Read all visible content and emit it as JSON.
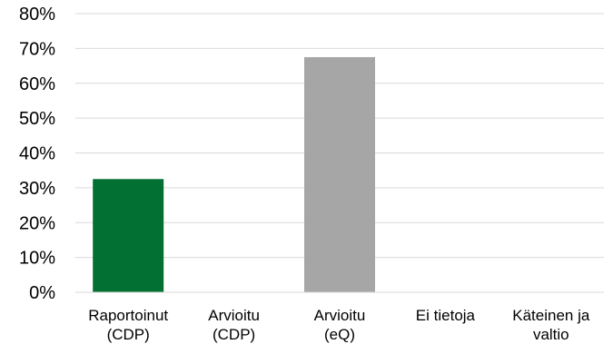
{
  "chart_data": {
    "type": "bar",
    "categories": [
      [
        "Raportoinut",
        "(CDP)"
      ],
      [
        "Arvioitu",
        "(CDP)"
      ],
      [
        "Arvioitu",
        "(eQ)"
      ],
      [
        "Ei tietoja"
      ],
      [
        "Käteinen ja",
        "valtio"
      ]
    ],
    "values": [
      32.5,
      0,
      67.5,
      0,
      0
    ],
    "bar_colors": [
      "#037033",
      "#037033",
      "#a6a6a6",
      "#a6a6a6",
      "#a6a6a6"
    ],
    "ylim": [
      0,
      80
    ],
    "yticks": [
      "0%",
      "10%",
      "20%",
      "30%",
      "40%",
      "50%",
      "60%",
      "70%",
      "80%"
    ],
    "grid": true,
    "legend": "none",
    "title": "",
    "xlabel": "",
    "ylabel": ""
  }
}
